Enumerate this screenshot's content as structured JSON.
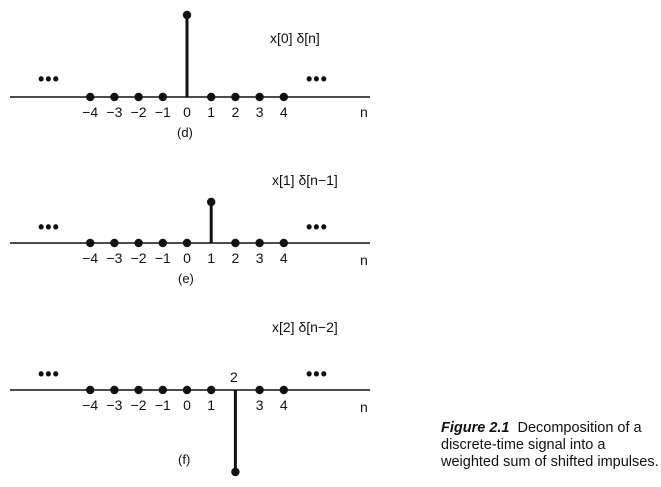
{
  "panels": [
    {
      "id": "d",
      "label": "x[0] δ[n]",
      "sublabel": "(d)",
      "ticks": [
        "−4",
        "−3",
        "−2",
        "−1",
        "0",
        "1",
        "2",
        "3",
        "4"
      ],
      "dots_label": "•••",
      "axis_var": "n",
      "impulse": {
        "n": 0,
        "value": 1
      }
    },
    {
      "id": "e",
      "label": "x[1] δ[n−1]",
      "sublabel": "(e)",
      "ticks": [
        "−4",
        "−3",
        "−2",
        "−1",
        "0",
        "1",
        "2",
        "3",
        "4"
      ],
      "dots_label": "•••",
      "axis_var": "n",
      "impulse": {
        "n": 1,
        "value": 0.5
      }
    },
    {
      "id": "f",
      "label": "x[2] δ[n−2]",
      "sublabel": "(f)",
      "ticks": [
        "−4",
        "−3",
        "−2",
        "−1",
        "0",
        "1",
        "",
        "3",
        "4"
      ],
      "dots_label": "•••",
      "axis_var": "n",
      "impulse": {
        "n": 2,
        "value": -1,
        "label": "2"
      }
    }
  ],
  "caption": {
    "number": "Figure 2.1",
    "text": "Decomposition of a discrete-time signal into a weighted sum of shifted impulses."
  }
}
